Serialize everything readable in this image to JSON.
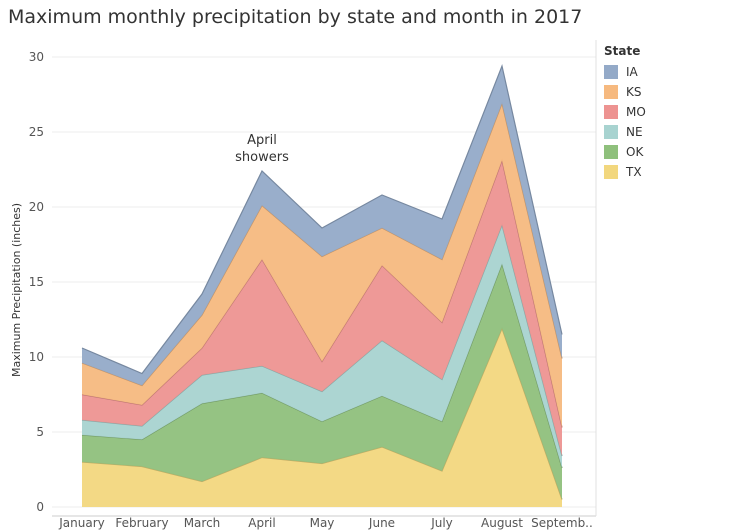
{
  "chart_data": {
    "type": "area",
    "stacked": true,
    "title": "Maximum monthly precipitation by state and month in 2017",
    "xlabel": "",
    "ylabel": "Maximum Precipitation (inches)",
    "ylim": [
      0,
      30
    ],
    "yticks": [
      0,
      5,
      10,
      15,
      20,
      25,
      30
    ],
    "categories": [
      "January",
      "February",
      "March",
      "April",
      "May",
      "June",
      "July",
      "August",
      "Septemb.."
    ],
    "legend_title": "State",
    "legend_position": "right",
    "grid": true,
    "series": [
      {
        "name": "TX",
        "color": "#f2d77e",
        "values": [
          3.0,
          2.7,
          1.7,
          3.3,
          2.9,
          4.0,
          2.4,
          11.9,
          0.5
        ]
      },
      {
        "name": "OK",
        "color": "#8fc07c",
        "values": [
          1.8,
          1.8,
          5.2,
          4.3,
          2.8,
          3.4,
          3.3,
          4.3,
          2.1
        ]
      },
      {
        "name": "NE",
        "color": "#a8d3d0",
        "values": [
          1.0,
          0.9,
          1.9,
          1.8,
          2.0,
          3.7,
          2.8,
          2.6,
          0.8
        ]
      },
      {
        "name": "MO",
        "color": "#ed9391",
        "values": [
          1.7,
          1.4,
          1.8,
          7.1,
          2.0,
          5.0,
          3.8,
          4.3,
          1.9
        ]
      },
      {
        "name": "KS",
        "color": "#f6b97f",
        "values": [
          2.1,
          1.3,
          2.2,
          3.6,
          7.0,
          2.5,
          4.2,
          3.8,
          4.6
        ]
      },
      {
        "name": "IA",
        "color": "#94aac8",
        "values": [
          1.0,
          0.8,
          1.4,
          2.3,
          1.9,
          2.2,
          2.7,
          2.5,
          1.6
        ]
      }
    ],
    "annotations": [
      {
        "text_lines": [
          "April",
          "showers"
        ],
        "category": "April"
      }
    ]
  }
}
